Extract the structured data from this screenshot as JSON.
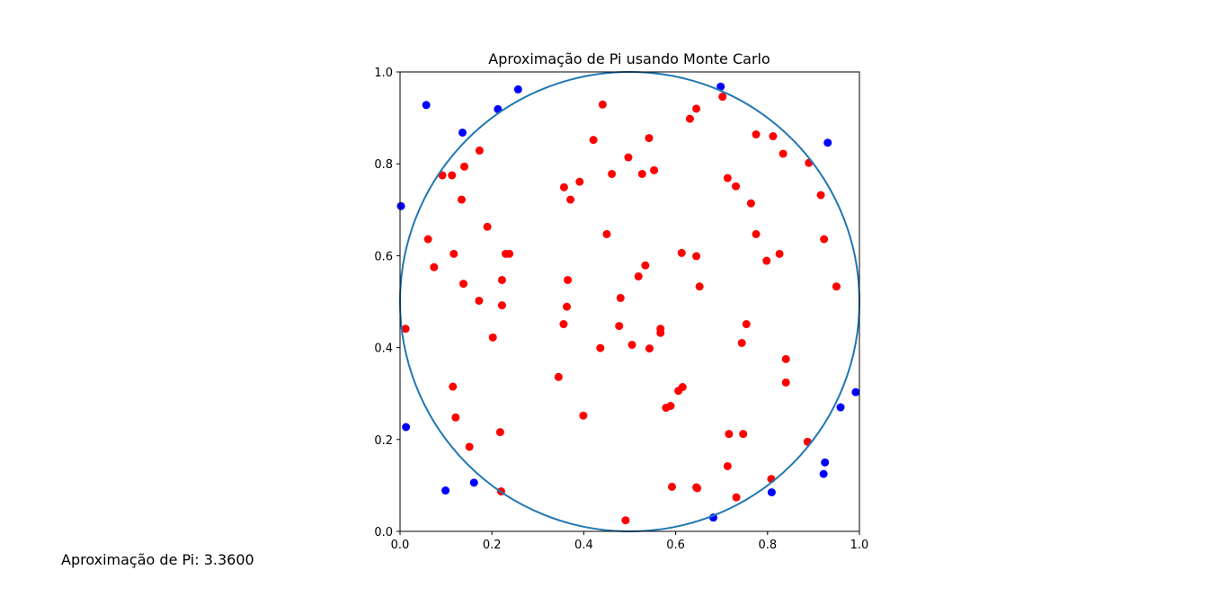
{
  "footer_text": "Aproximação de Pi: 3.3600",
  "colors": {
    "inside": "#ff0000",
    "outside": "#0000ff",
    "circle": "#1f77b4",
    "axes": "#000000"
  },
  "chart_data": {
    "type": "scatter",
    "title": "Aproximação de Pi usando Monte Carlo",
    "xlabel": "",
    "ylabel": "",
    "xlim": [
      0,
      1
    ],
    "ylim": [
      0,
      1
    ],
    "x_ticks": [
      "0.0",
      "0.2",
      "0.4",
      "0.6",
      "0.8",
      "1.0"
    ],
    "y_ticks": [
      "0.0",
      "0.2",
      "0.4",
      "0.6",
      "0.8",
      "1.0"
    ],
    "grid": false,
    "circle": {
      "cx": 0.5,
      "cy": 0.5,
      "r": 0.5
    },
    "series": [
      {
        "color": "#ff0000",
        "points": [
          [
            0.441,
            0.929
          ],
          [
            0.702,
            0.946
          ],
          [
            0.645,
            0.92
          ],
          [
            0.631,
            0.898
          ],
          [
            0.421,
            0.852
          ],
          [
            0.542,
            0.856
          ],
          [
            0.775,
            0.864
          ],
          [
            0.812,
            0.86
          ],
          [
            0.173,
            0.829
          ],
          [
            0.834,
            0.822
          ],
          [
            0.497,
            0.814
          ],
          [
            0.89,
            0.802
          ],
          [
            0.14,
            0.794
          ],
          [
            0.553,
            0.786
          ],
          [
            0.461,
            0.778
          ],
          [
            0.527,
            0.778
          ],
          [
            0.092,
            0.775
          ],
          [
            0.113,
            0.775
          ],
          [
            0.391,
            0.761
          ],
          [
            0.713,
            0.769
          ],
          [
            0.731,
            0.751
          ],
          [
            0.357,
            0.749
          ],
          [
            0.134,
            0.722
          ],
          [
            0.371,
            0.722
          ],
          [
            0.916,
            0.732
          ],
          [
            0.764,
            0.714
          ],
          [
            0.19,
            0.663
          ],
          [
            0.45,
            0.647
          ],
          [
            0.061,
            0.636
          ],
          [
            0.775,
            0.647
          ],
          [
            0.923,
            0.636
          ],
          [
            0.117,
            0.604
          ],
          [
            0.23,
            0.604
          ],
          [
            0.238,
            0.604
          ],
          [
            0.613,
            0.606
          ],
          [
            0.645,
            0.599
          ],
          [
            0.826,
            0.604
          ],
          [
            0.798,
            0.589
          ],
          [
            0.074,
            0.575
          ],
          [
            0.534,
            0.579
          ],
          [
            0.222,
            0.547
          ],
          [
            0.365,
            0.547
          ],
          [
            0.519,
            0.555
          ],
          [
            0.138,
            0.539
          ],
          [
            0.652,
            0.533
          ],
          [
            0.95,
            0.533
          ],
          [
            0.172,
            0.502
          ],
          [
            0.48,
            0.508
          ],
          [
            0.222,
            0.492
          ],
          [
            0.363,
            0.489
          ],
          [
            0.356,
            0.451
          ],
          [
            0.477,
            0.447
          ],
          [
            0.567,
            0.441
          ],
          [
            0.567,
            0.432
          ],
          [
            0.754,
            0.451
          ],
          [
            0.012,
            0.441
          ],
          [
            0.202,
            0.422
          ],
          [
            0.744,
            0.41
          ],
          [
            0.505,
            0.406
          ],
          [
            0.436,
            0.399
          ],
          [
            0.543,
            0.398
          ],
          [
            0.84,
            0.375
          ],
          [
            0.345,
            0.336
          ],
          [
            0.84,
            0.324
          ],
          [
            0.115,
            0.315
          ],
          [
            0.615,
            0.314
          ],
          [
            0.606,
            0.306
          ],
          [
            0.589,
            0.273
          ],
          [
            0.579,
            0.269
          ],
          [
            0.399,
            0.252
          ],
          [
            0.121,
            0.248
          ],
          [
            0.218,
            0.216
          ],
          [
            0.716,
            0.212
          ],
          [
            0.747,
            0.212
          ],
          [
            0.151,
            0.184
          ],
          [
            0.887,
            0.195
          ],
          [
            0.713,
            0.142
          ],
          [
            0.808,
            0.114
          ],
          [
            0.592,
            0.097
          ],
          [
            0.645,
            0.096
          ],
          [
            0.647,
            0.094
          ],
          [
            0.22,
            0.087
          ],
          [
            0.732,
            0.074
          ],
          [
            0.491,
            0.024
          ]
        ]
      },
      {
        "color": "#0000ff",
        "points": [
          [
            0.057,
            0.928
          ],
          [
            0.257,
            0.962
          ],
          [
            0.213,
            0.919
          ],
          [
            0.136,
            0.868
          ],
          [
            0.698,
            0.968
          ],
          [
            0.931,
            0.846
          ],
          [
            0.002,
            0.708
          ],
          [
            0.992,
            0.303
          ],
          [
            0.959,
            0.27
          ],
          [
            0.013,
            0.227
          ],
          [
            0.925,
            0.15
          ],
          [
            0.922,
            0.125
          ],
          [
            0.099,
            0.089
          ],
          [
            0.161,
            0.106
          ],
          [
            0.809,
            0.085
          ],
          [
            0.682,
            0.03
          ]
        ]
      }
    ]
  }
}
